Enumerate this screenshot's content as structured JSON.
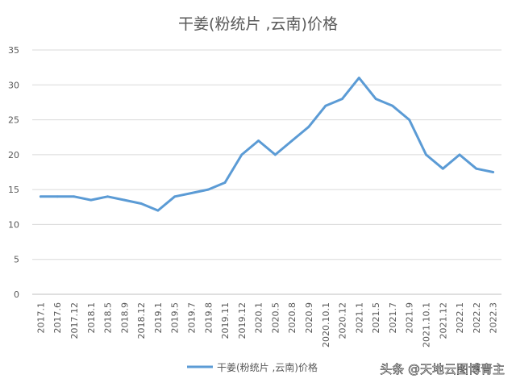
{
  "chart_data": {
    "type": "line",
    "title": "干姜(粉统片 ,云南)价格",
    "xlabel": "",
    "ylabel": "",
    "ylim": [
      0,
      35
    ],
    "yticks": [
      0,
      5,
      10,
      15,
      20,
      25,
      30,
      35
    ],
    "grid": true,
    "legend_position": "bottom",
    "categories": [
      "2017.1",
      "2017.6",
      "2017.12",
      "2018.1",
      "2018.5",
      "2018.9",
      "2018.12",
      "2019.1",
      "2019.5",
      "2019.7",
      "2019.8",
      "2019.11",
      "2019.12",
      "2020.1",
      "2020.5",
      "2020.8",
      "2020.9",
      "2020.10.1",
      "2020.12",
      "2021.1",
      "2021.5",
      "2021.7",
      "2021.9",
      "2021.10.1",
      "2021.12",
      "2022.1",
      "2022.2",
      "2022.3"
    ],
    "series": [
      {
        "name": "干姜(粉统片 ,云南)价格",
        "color": "#5B9BD5",
        "values": [
          14,
          14,
          14,
          13.5,
          14,
          13.5,
          13,
          12,
          14,
          14.5,
          15,
          16,
          20,
          22,
          20,
          22,
          24,
          27,
          28,
          31,
          28,
          27,
          25,
          20,
          18,
          20,
          18,
          17.5
        ]
      }
    ]
  },
  "watermark": "头条 @天地云图博青主"
}
